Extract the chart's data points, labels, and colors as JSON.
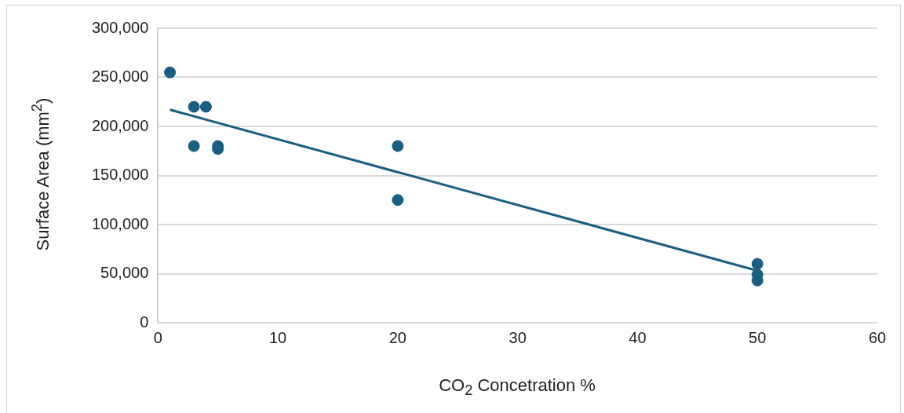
{
  "chart_data": {
    "type": "scatter",
    "xlabel": "CO$_{2}$ Concetration %",
    "ylabel": "Surface Area (mm$^{2}$)",
    "xlim": [
      0,
      60
    ],
    "xticks": [
      0,
      10,
      20,
      30,
      40,
      50,
      60
    ],
    "ylim": [
      0,
      300000
    ],
    "yticks": [
      0,
      {
        "value": 50000,
        "label": "50,000"
      },
      {
        "value": 100000,
        "label": "100,000"
      },
      {
        "value": 150000,
        "label": "150,000"
      },
      {
        "value": 200000,
        "label": "200,000"
      },
      {
        "value": 250000,
        "label": "250,000"
      },
      {
        "value": 300000,
        "label": "300,000"
      }
    ],
    "grid": "y",
    "legend": false,
    "marker": "circle",
    "series": [
      {
        "type": "scatter",
        "color": "#1a5e82",
        "x": [
          1,
          3,
          4,
          3,
          5,
          5,
          20,
          20,
          50,
          50,
          50
        ],
        "values": [
          255000,
          220000,
          220000,
          180000,
          180000,
          177000,
          180000,
          125000,
          60000,
          49000,
          43000
        ]
      },
      {
        "type": "line",
        "color": "#1a5e82",
        "marker": "none",
        "line_style": "solid",
        "x": [
          1,
          50
        ],
        "values": [
          217000,
          53000
        ]
      }
    ]
  }
}
